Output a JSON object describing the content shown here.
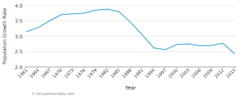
{
  "chart_data": {
    "type": "line",
    "x": [
      1961,
      1964,
      1967,
      1970,
      1973,
      1976,
      1979,
      1982,
      1985,
      1988,
      1991,
      1994,
      1997,
      2000,
      2003,
      2006,
      2009,
      2012,
      2015
    ],
    "values": [
      3.15,
      3.28,
      3.5,
      3.7,
      3.73,
      3.75,
      3.85,
      3.88,
      3.8,
      3.45,
      3.05,
      2.62,
      2.56,
      2.73,
      2.75,
      2.69,
      2.7,
      2.77,
      2.43
    ],
    "color": "#5ab4d6",
    "x_label": "Year",
    "y_label": "Population Growth Rate",
    "xlim": [
      1960.5,
      2015.5
    ],
    "xticks": [
      1961,
      1964,
      1967,
      1970,
      1973,
      1976,
      1979,
      1982,
      1985,
      1988,
      1991,
      1994,
      1997,
      2000,
      2003,
      2006,
      2009,
      2012,
      2015
    ],
    "ylim": [
      2.0,
      4.0
    ],
    "yticks": [
      {
        "value": 2.0,
        "label": "2.0"
      },
      2.5,
      {
        "value": 3.0,
        "label": "3.0"
      },
      3.5,
      {
        "value": 4.0,
        "label": "4.0"
      }
    ],
    "grid": true,
    "annotations": [
      "© kenyatraveltips.com"
    ]
  }
}
